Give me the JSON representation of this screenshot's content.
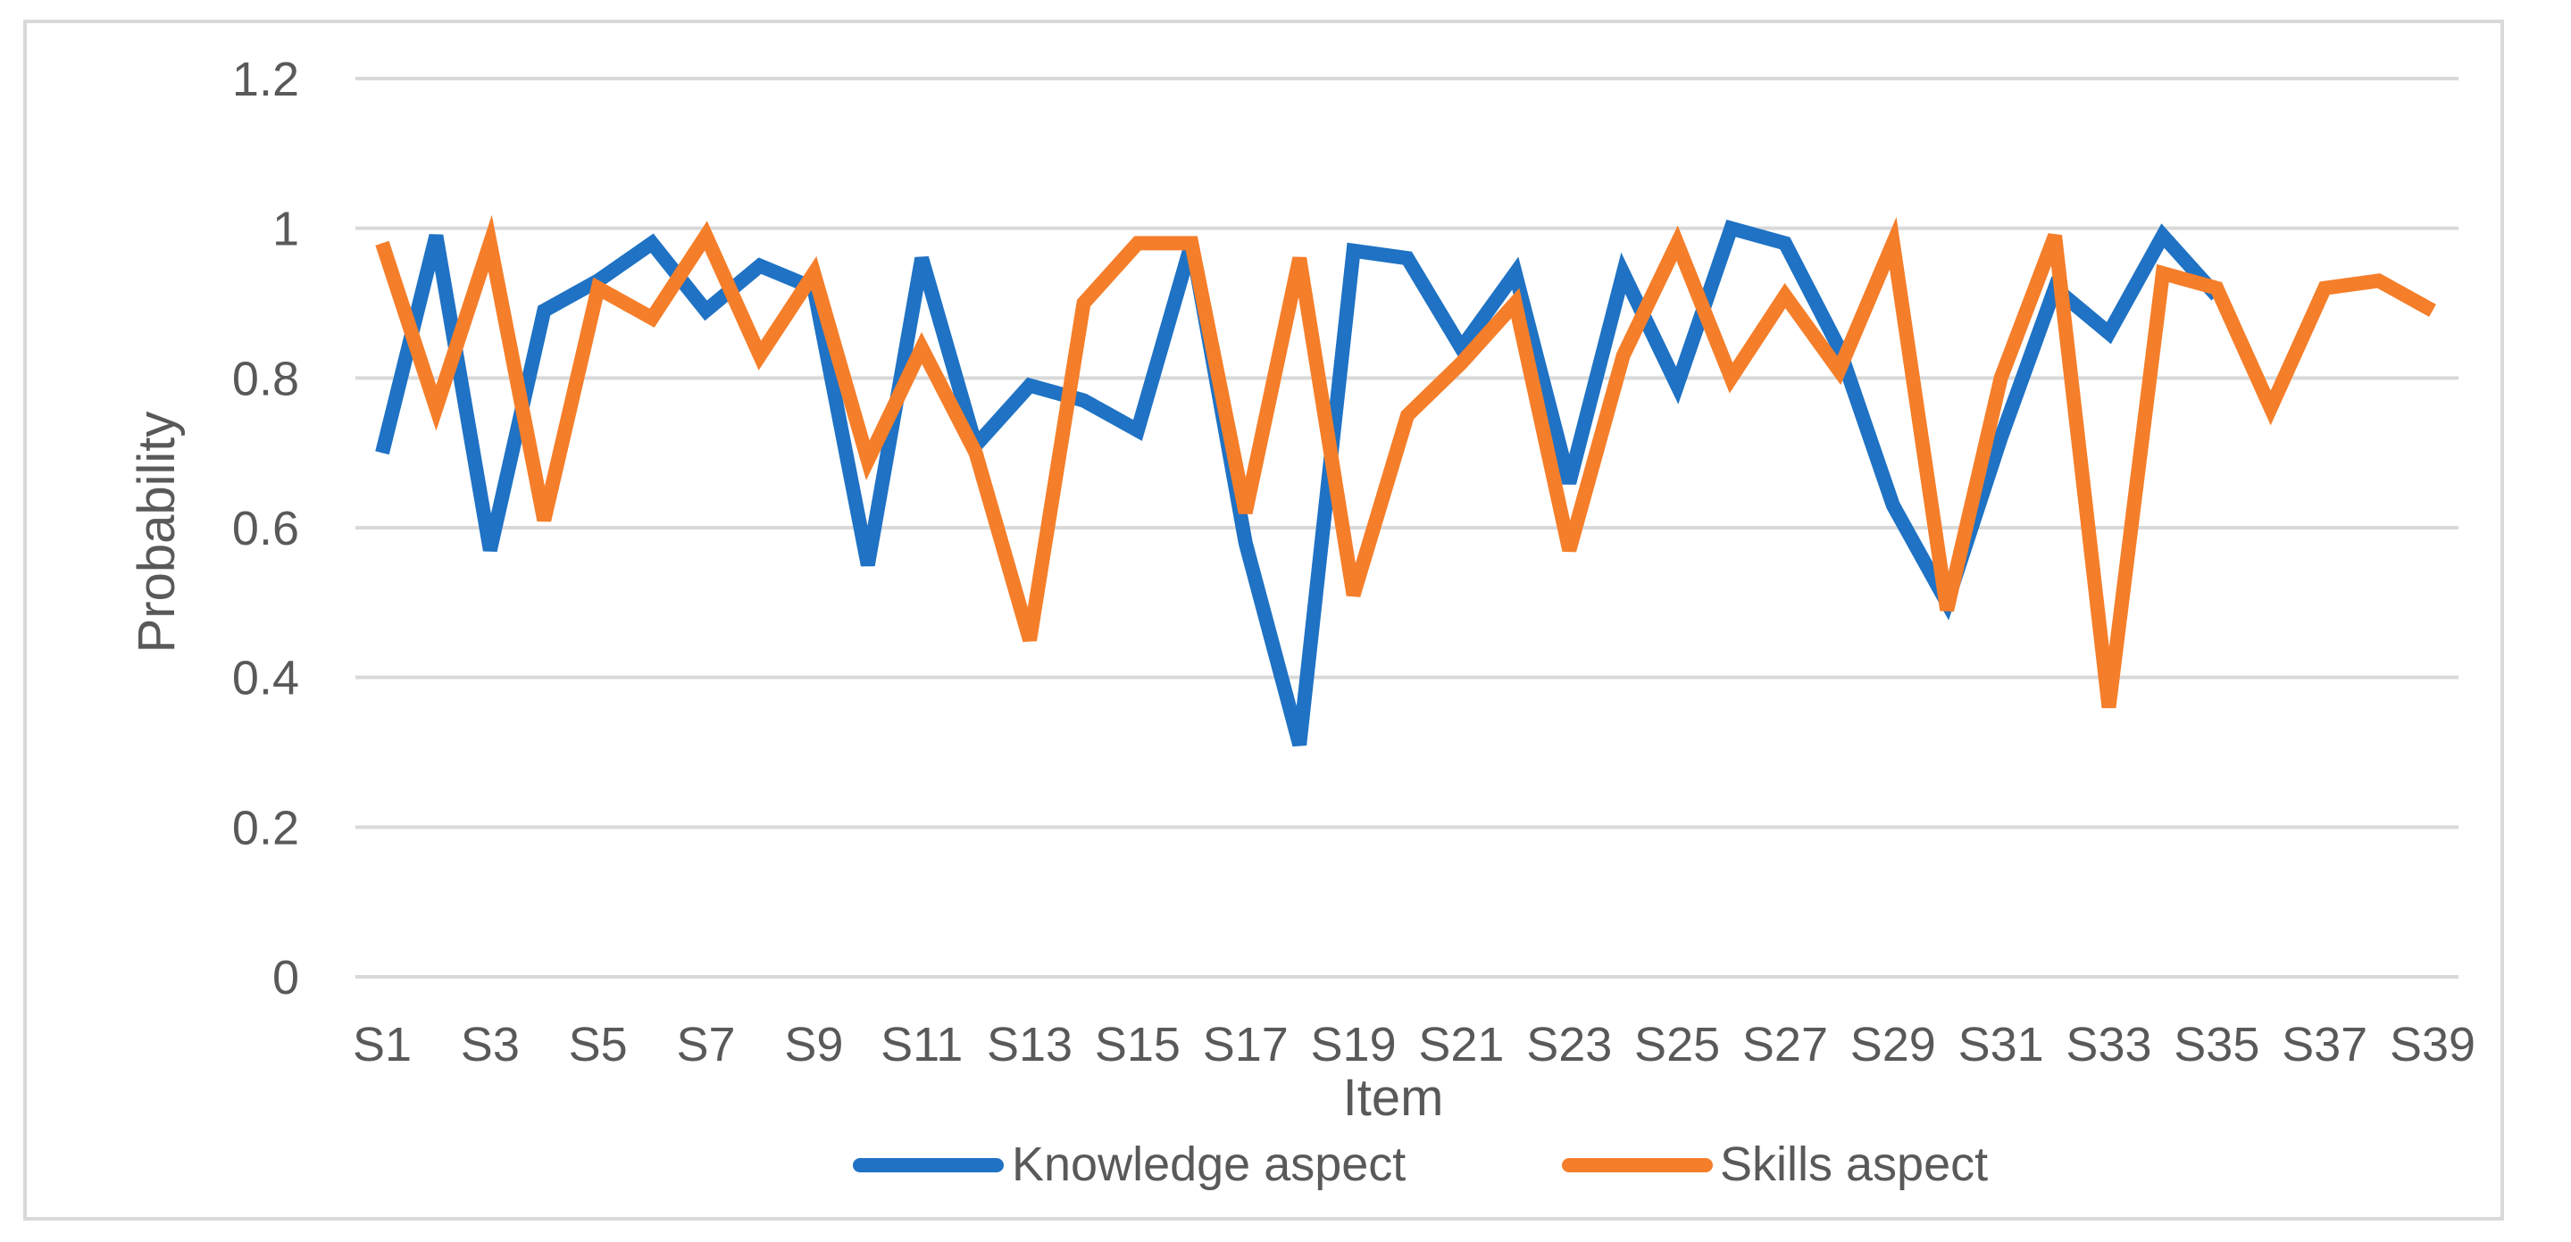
{
  "chart_data": {
    "type": "line",
    "title": "",
    "xlabel": "Item",
    "ylabel": "Probability",
    "ylim": [
      0,
      1.2
    ],
    "yticks": [
      "0",
      "0.2",
      "0.4",
      "0.6",
      "0.8",
      "1",
      "1.2"
    ],
    "grid": "horizontal",
    "legend_position": "bottom",
    "categories": [
      "S1",
      "S2",
      "S3",
      "S4",
      "S5",
      "S6",
      "S7",
      "S8",
      "S9",
      "S10",
      "S11",
      "S12",
      "S13",
      "S14",
      "S15",
      "S16",
      "S17",
      "S18",
      "S19",
      "S20",
      "S21",
      "S22",
      "S23",
      "S24",
      "S25",
      "S26",
      "S27",
      "S28",
      "S29",
      "S30",
      "S31",
      "S32",
      "S33",
      "S34",
      "S35",
      "S36",
      "S37",
      "S38",
      "S39"
    ],
    "xtick_labels": [
      "S1",
      "S3",
      "S5",
      "S7",
      "S9",
      "S11",
      "S13",
      "S15",
      "S17",
      "S19",
      "S21",
      "S23",
      "S25",
      "S27",
      "S29",
      "S31",
      "S33",
      "S35",
      "S37",
      "S39"
    ],
    "series": [
      {
        "name": "Knowledge aspect",
        "color": "#1f72c4",
        "values": [
          0.7,
          0.99,
          0.57,
          0.89,
          0.93,
          0.98,
          0.89,
          0.95,
          0.92,
          0.55,
          0.96,
          0.71,
          0.79,
          0.77,
          0.73,
          0.98,
          0.58,
          0.31,
          0.97,
          0.96,
          0.84,
          0.94,
          0.66,
          0.94,
          0.79,
          1.0,
          0.98,
          0.84,
          0.63,
          0.5,
          0.72,
          0.92,
          0.86,
          0.99,
          0.91,
          null,
          null,
          null,
          null
        ]
      },
      {
        "name": "Skills aspect",
        "color": "#f57e2a",
        "values": [
          0.98,
          0.76,
          0.98,
          0.61,
          0.92,
          0.88,
          0.99,
          0.83,
          0.94,
          0.69,
          0.84,
          0.7,
          0.45,
          0.9,
          0.98,
          0.98,
          0.62,
          0.96,
          0.51,
          0.75,
          0.82,
          0.9,
          0.57,
          0.83,
          0.98,
          0.8,
          0.91,
          0.81,
          0.98,
          0.49,
          0.8,
          0.99,
          0.36,
          0.94,
          0.92,
          0.76,
          0.92,
          0.93,
          0.89
        ]
      }
    ]
  }
}
